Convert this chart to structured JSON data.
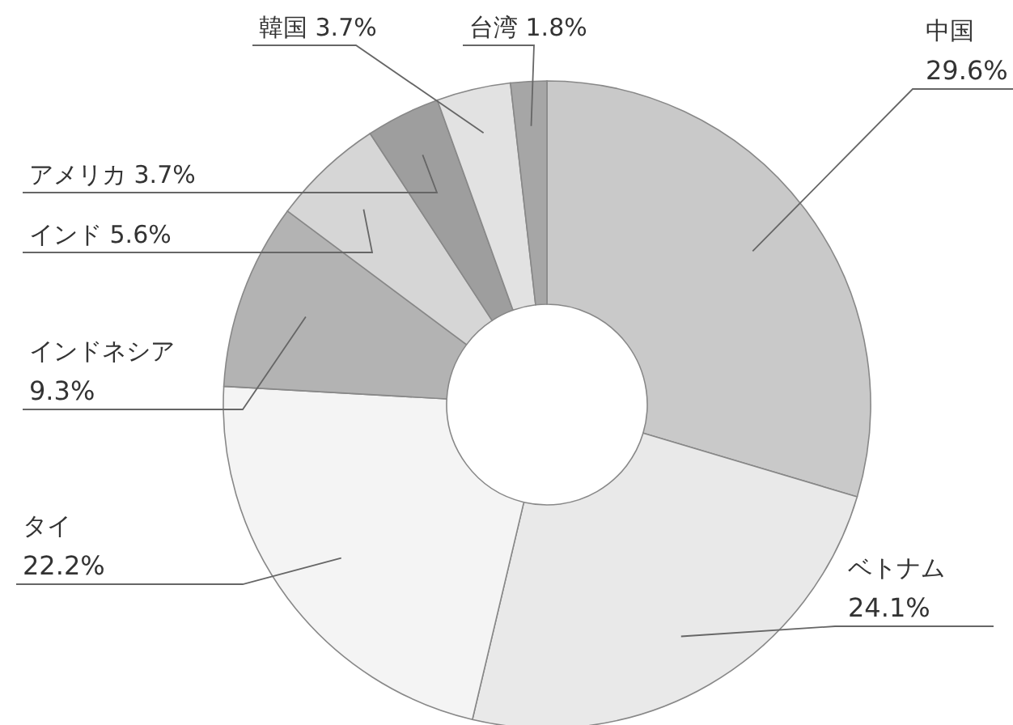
{
  "chart_data": {
    "type": "donut",
    "categories": [
      "中国",
      "ベトナム",
      "タイ",
      "インドネシア",
      "インド",
      "アメリカ",
      "韓国",
      "台湾"
    ],
    "values": [
      29.6,
      24.1,
      22.2,
      9.3,
      5.6,
      3.7,
      3.7,
      1.8
    ],
    "value_labels": [
      "29.6%",
      "24.1%",
      "22.2%",
      "9.3%",
      "5.6%",
      "3.7%",
      "3.7%",
      "1.8%"
    ],
    "colors": [
      "#c9c9c9",
      "#e9e9e9",
      "#f4f4f4",
      "#b3b3b3",
      "#d6d6d6",
      "#9e9e9e",
      "#e2e2e2",
      "#a6a6a6"
    ]
  }
}
